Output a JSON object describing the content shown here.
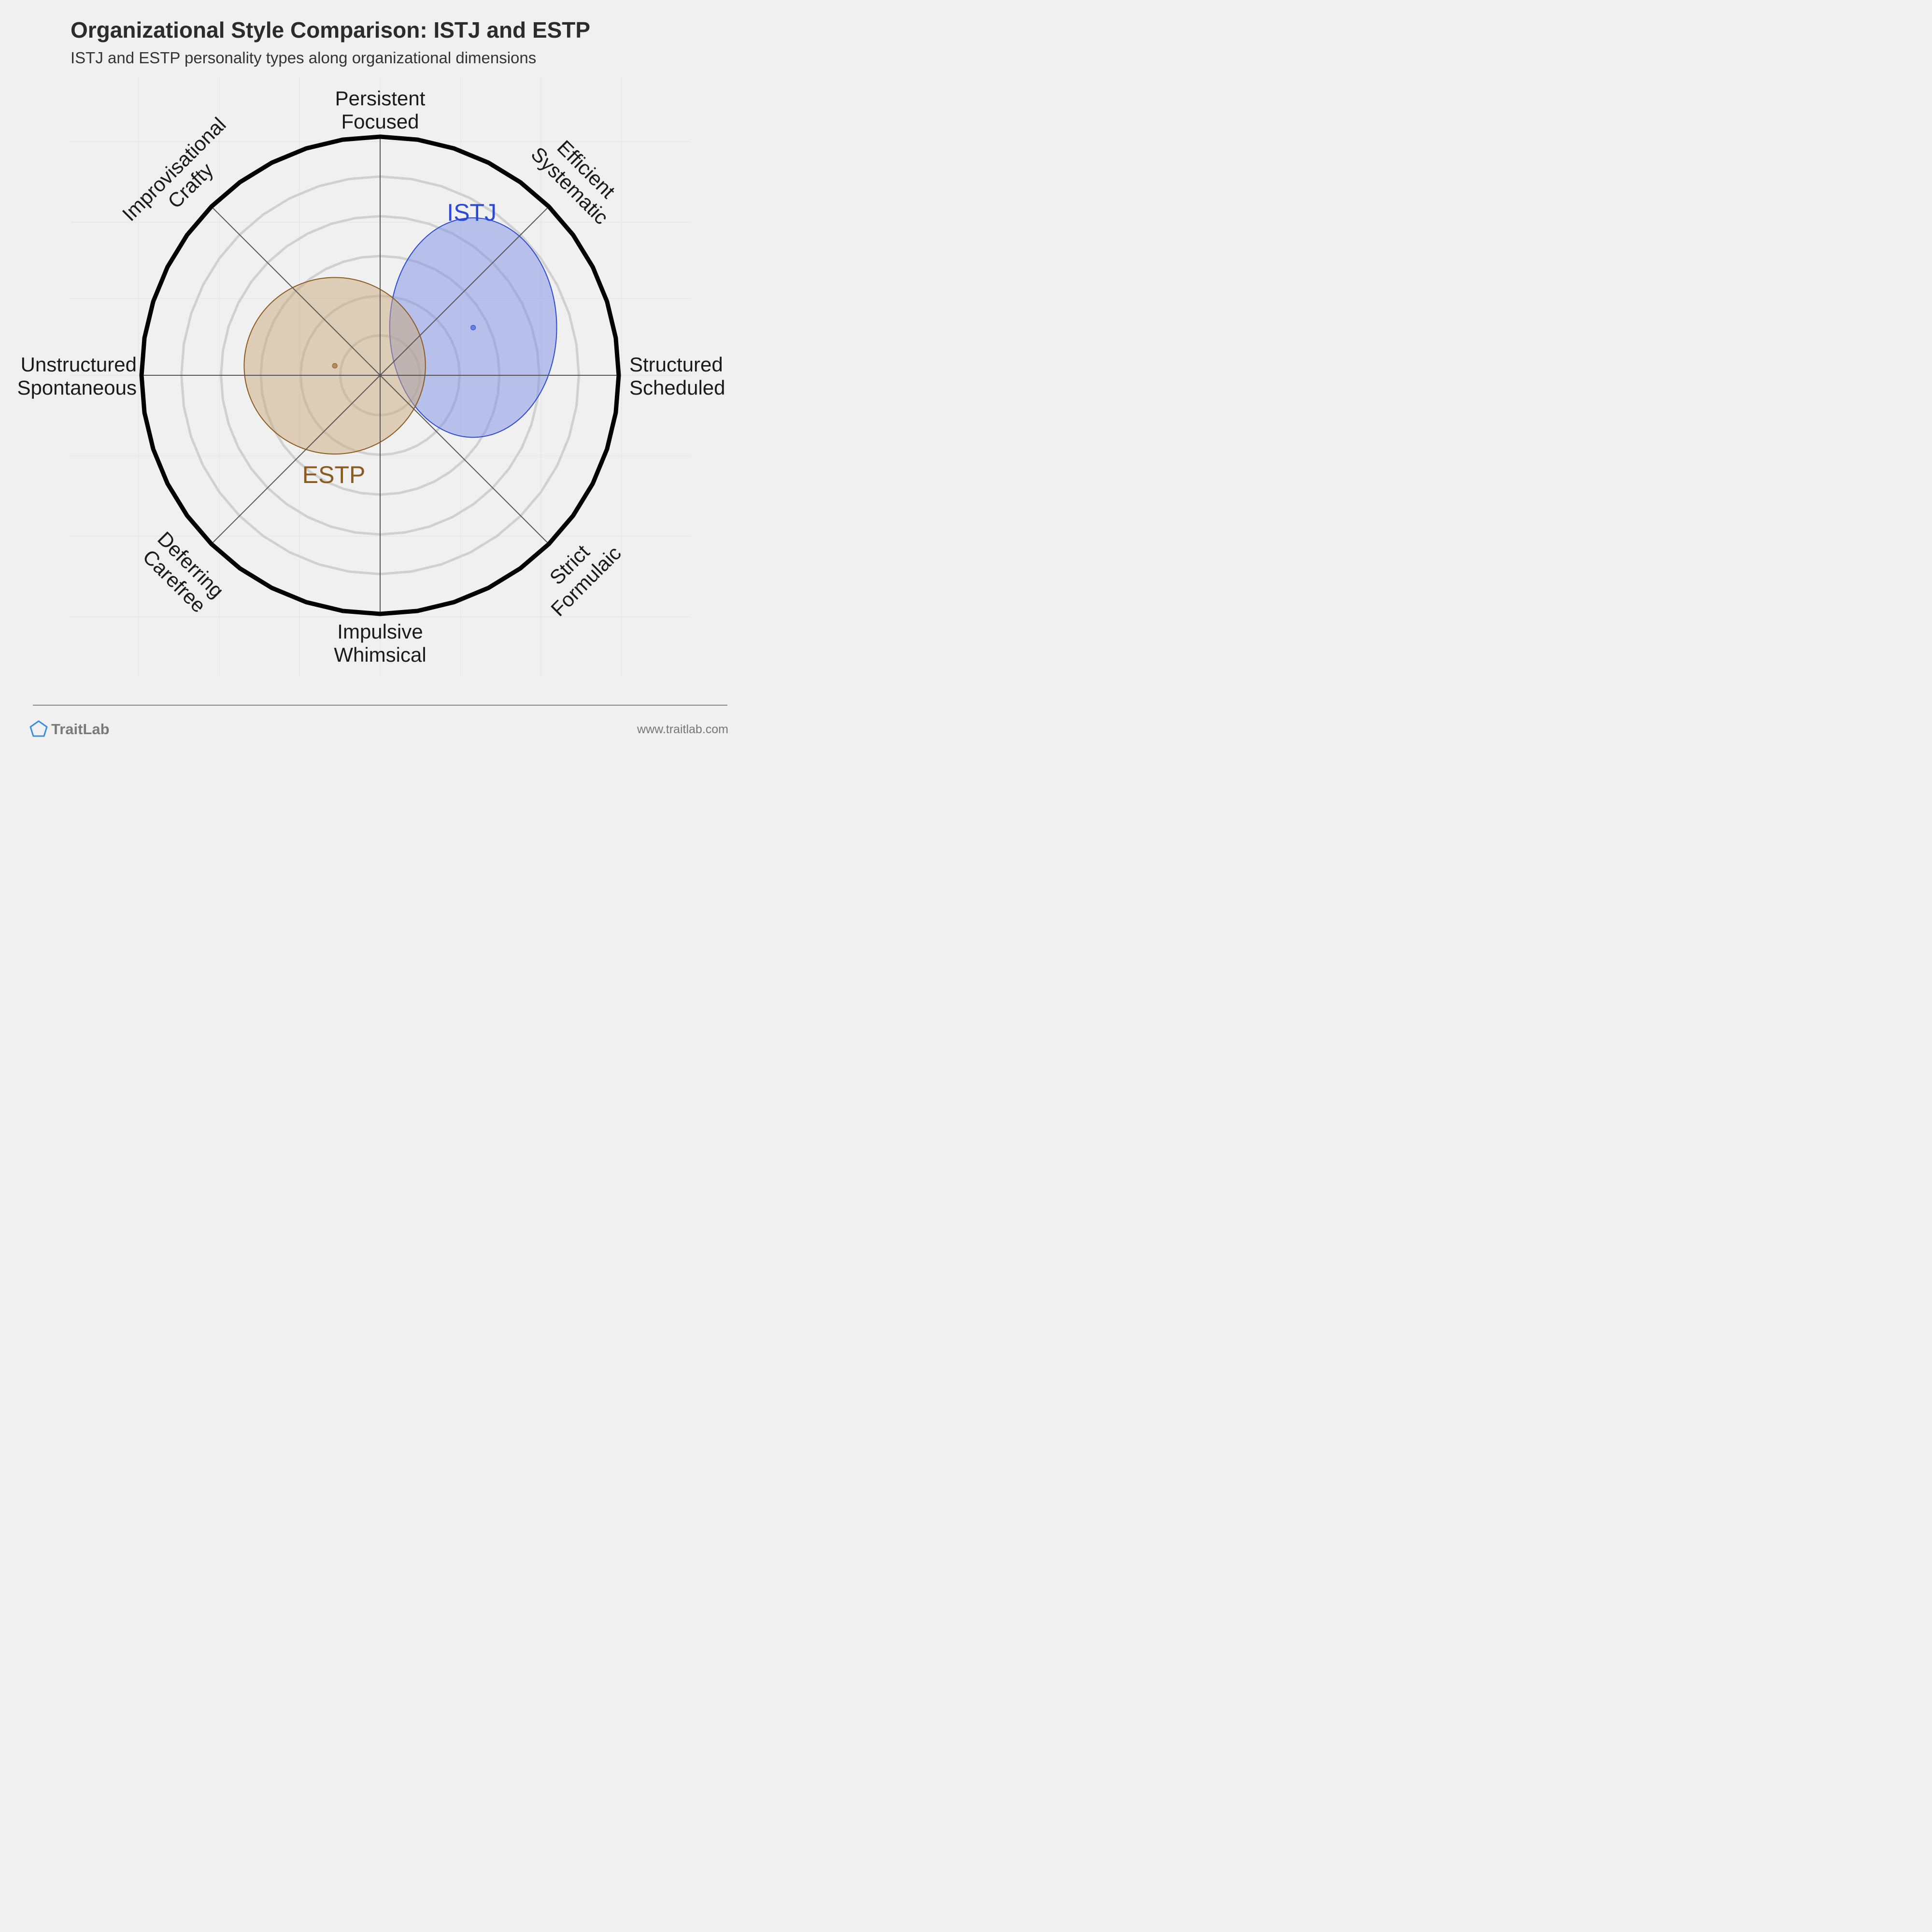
{
  "chart_data": {
    "type": "radar-ellipse",
    "title": "Organizational Style Comparison: ISTJ and ESTP",
    "subtitle": "ISTJ and ESTP personality types along organizational dimensions",
    "grid": true,
    "axes": [
      {
        "lines": [
          "Structured",
          "Scheduled"
        ]
      },
      {
        "lines": [
          "Efficient",
          "Systematic"
        ]
      },
      {
        "lines": [
          "Persistent",
          "Focused"
        ]
      },
      {
        "lines": [
          "Improvisational",
          "Crafty"
        ]
      },
      {
        "lines": [
          "Unstructured",
          "Spontaneous"
        ]
      },
      {
        "lines": [
          "Deferring",
          "Carefree"
        ]
      },
      {
        "lines": [
          "Impulsive",
          "Whimsical"
        ]
      },
      {
        "lines": [
          "Strict",
          "Formulaic"
        ]
      }
    ],
    "series": [
      {
        "name": "ISTJ",
        "center_x": 39,
        "center_y": 20,
        "radius_x": 35,
        "radius_y": 46,
        "color": "#2a4ad6",
        "fill": "#7d8fe6"
      },
      {
        "name": "ESTP",
        "center_x": -19,
        "center_y": 4,
        "radius_x": 38,
        "radius_y": 37,
        "color": "#8b5a1e",
        "fill": "#c9a77c"
      }
    ],
    "scale_max": 100
  },
  "footer": {
    "brand": "TraitLab",
    "url": "www.traitlab.com"
  },
  "colors": {
    "background": "#f0f0f0",
    "grid_ring": "#d0d0d0",
    "outer_ring": "#000000",
    "axis_line": "#555555"
  }
}
